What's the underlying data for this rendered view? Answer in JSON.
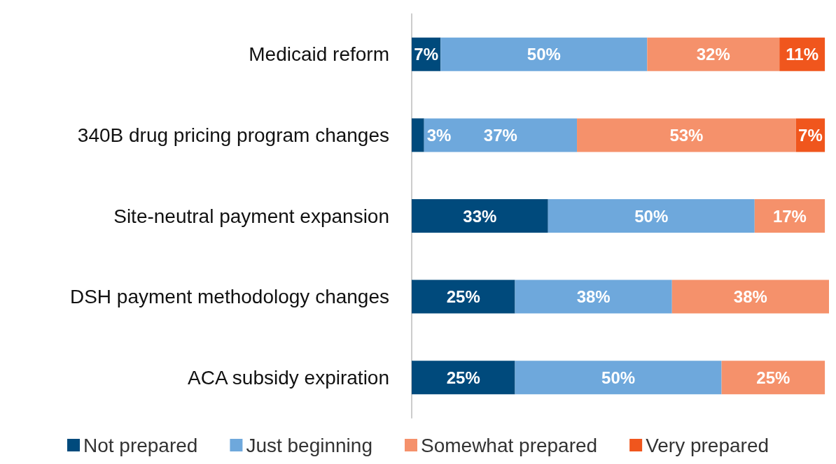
{
  "chart_data": {
    "type": "bar",
    "orientation": "horizontal",
    "stacked": true,
    "categories": [
      "Medicaid reform",
      "340B drug pricing program changes",
      "Site-neutral payment expansion",
      "DSH payment methodology changes",
      "ACA subsidy expiration"
    ],
    "series": [
      {
        "name": "Not prepared",
        "color": "#004a7c",
        "values": [
          7,
          3,
          33,
          25,
          25
        ],
        "value_labels": [
          "7%",
          "3%",
          "33%",
          "25%",
          "25%"
        ]
      },
      {
        "name": "Just beginning",
        "color": "#6ea8dc",
        "values": [
          50,
          37,
          50,
          38,
          50
        ],
        "value_labels": [
          "50%",
          "37%",
          "50%",
          "38%",
          "50%"
        ]
      },
      {
        "name": "Somewhat prepared",
        "color": "#f5916b",
        "values": [
          32,
          53,
          17,
          38,
          25
        ],
        "value_labels": [
          "32%",
          "53%",
          "17%",
          "38%",
          "25%"
        ]
      },
      {
        "name": "Very prepared",
        "color": "#f0561d",
        "values": [
          11,
          7,
          null,
          null,
          null
        ],
        "value_labels": [
          "11%",
          "7%",
          null,
          null,
          null
        ]
      }
    ],
    "legend": "bottom",
    "grid": false
  }
}
